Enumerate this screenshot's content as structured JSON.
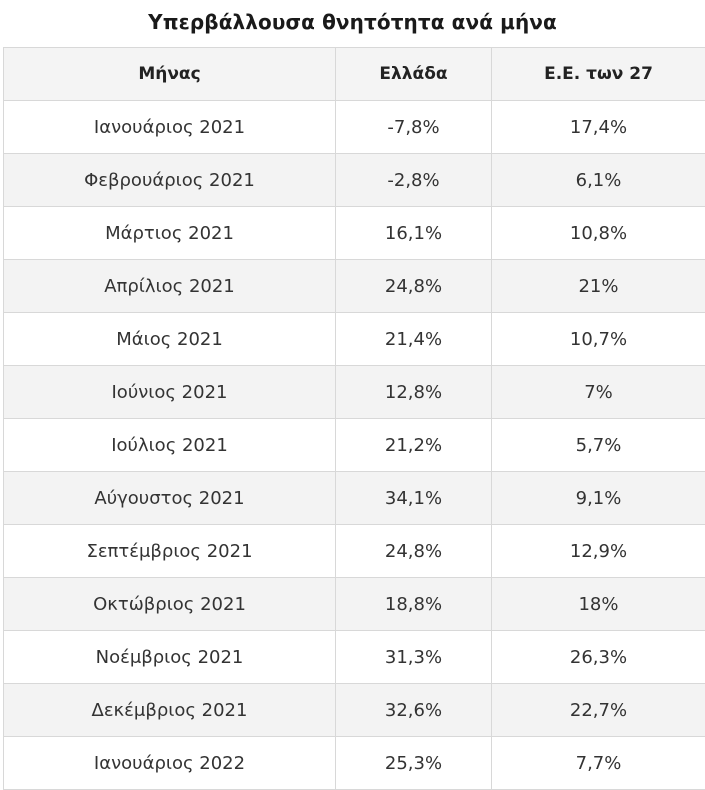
{
  "title": "Υπερβάλλουσα θνητότητα ανά μήνα",
  "table": {
    "headers": [
      "Μήνας",
      "Ελλάδα",
      "Ε.Ε. των 27"
    ],
    "rows": [
      [
        "Ιανουάριος 2021",
        "-7,8%",
        "17,4%"
      ],
      [
        "Φεβρουάριος 2021",
        "-2,8%",
        "6,1%"
      ],
      [
        "Μάρτιος 2021",
        "16,1%",
        "10,8%"
      ],
      [
        "Απρίλιος 2021",
        "24,8%",
        "21%"
      ],
      [
        "Μάιος 2021",
        "21,4%",
        "10,7%"
      ],
      [
        "Ιούνιος 2021",
        "12,8%",
        "7%"
      ],
      [
        "Ιούλιος 2021",
        "21,2%",
        "5,7%"
      ],
      [
        "Αύγουστος 2021",
        "34,1%",
        "9,1%"
      ],
      [
        "Σεπτέμβριος 2021",
        "24,8%",
        "12,9%"
      ],
      [
        "Οκτώβριος 2021",
        "18,8%",
        "18%"
      ],
      [
        "Νοέμβριος 2021",
        "31,3%",
        "26,3%"
      ],
      [
        "Δεκέμβριος 2021",
        "32,6%",
        "22,7%"
      ],
      [
        "Ιανουάριος 2022",
        "25,3%",
        "7,7%"
      ]
    ]
  }
}
